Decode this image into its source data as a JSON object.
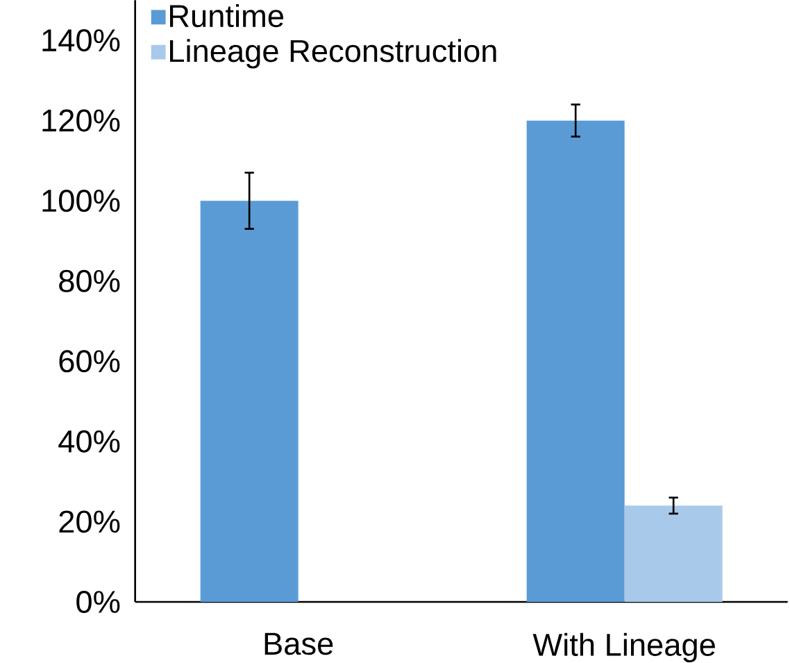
{
  "chart_data": {
    "type": "bar",
    "categories": [
      "Base",
      "With Lineage"
    ],
    "series": [
      {
        "name": "Runtime",
        "color": "#5b9bd5",
        "values": [
          100,
          120
        ],
        "errors": [
          7,
          4
        ]
      },
      {
        "name": "Lineage Reconstruction",
        "color": "#a9c9ea",
        "values": [
          null,
          24
        ],
        "errors": [
          null,
          2
        ]
      }
    ],
    "ylim": [
      0,
      150
    ],
    "yticks": [
      {
        "value": 0,
        "label": "0%"
      },
      {
        "value": 20,
        "label": "20%"
      },
      {
        "value": 40,
        "label": "40%"
      },
      {
        "value": 60,
        "label": "60%"
      },
      {
        "value": 80,
        "label": "80%"
      },
      {
        "value": 100,
        "label": "100%"
      },
      {
        "value": 120,
        "label": "120%"
      },
      {
        "value": 140,
        "label": "140%"
      }
    ],
    "grid": false,
    "legend": "top left"
  }
}
